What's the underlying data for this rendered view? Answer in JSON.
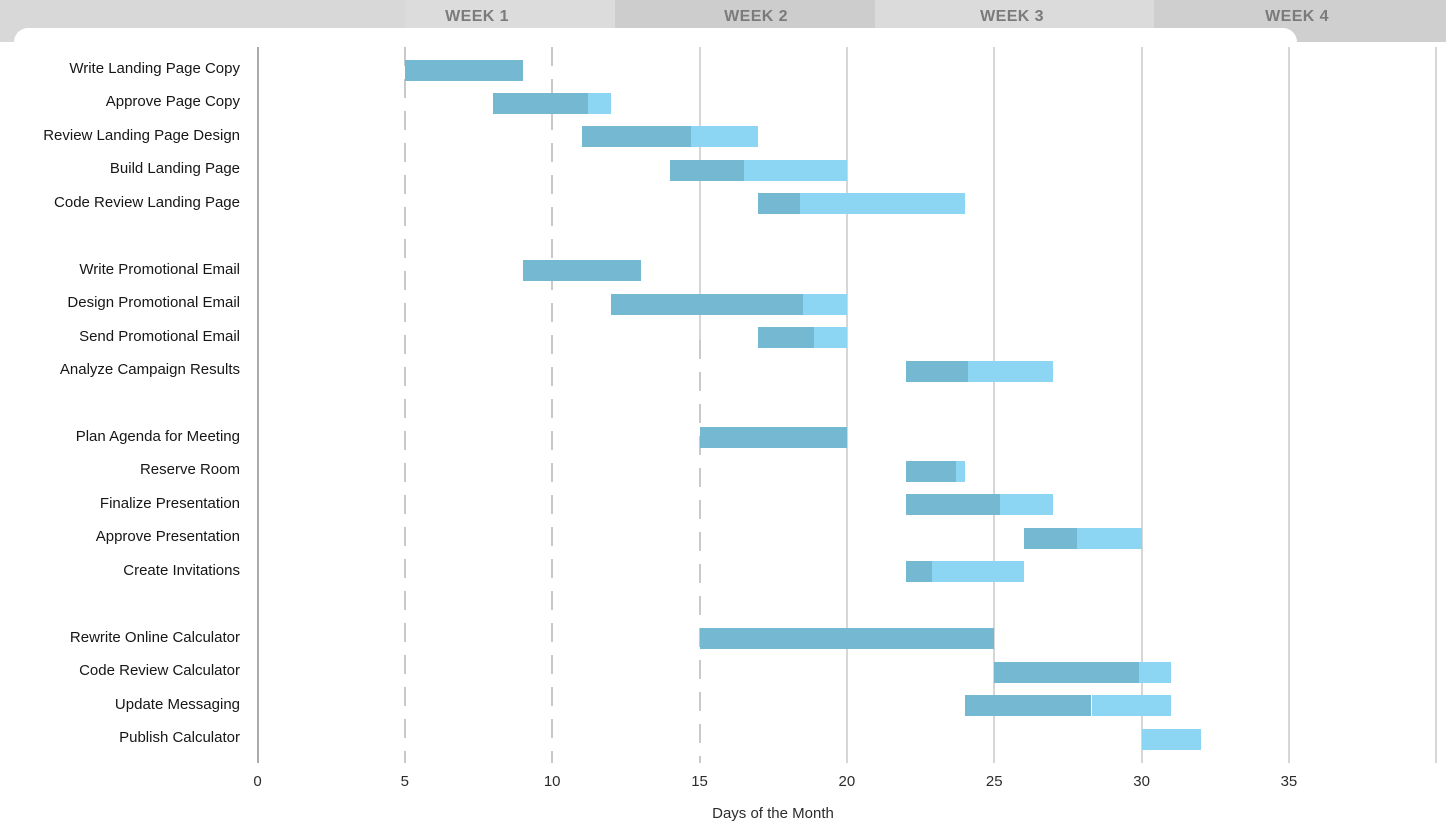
{
  "header": {
    "week_labels": [
      "WEEK 1",
      "WEEK 2",
      "WEEK 3",
      "WEEK 4"
    ],
    "band_colors": [
      "#d8d8d8",
      "#dcdcdc",
      "#cdcdcd",
      "#dbdbdb",
      "#cfcfcf"
    ],
    "text_color": "#7b7b7b"
  },
  "chart_data": {
    "type": "gantt",
    "xlabel": "Days of the Month",
    "x_ticks": [
      0,
      5,
      10,
      15,
      20,
      25,
      30,
      35
    ],
    "xlim": [
      0,
      40
    ],
    "grid": "vertical, 5-day intervals, dashed on days 5-15, solid elsewhere",
    "legend": "none",
    "bar_colors": {
      "complete": "#74b8d1",
      "remaining": "#8dd6f3"
    },
    "groups": [
      {
        "name": "landing-page",
        "tasks": [
          {
            "label": "Write Landing Page Copy",
            "start": 5,
            "end": 9,
            "complete_until": 9
          },
          {
            "label": "Approve Page Copy",
            "start": 8,
            "end": 12,
            "complete_until": 11.2
          },
          {
            "label": "Review Landing Page Design",
            "start": 11,
            "end": 17,
            "complete_until": 14.7
          },
          {
            "label": "Build Landing Page",
            "start": 14,
            "end": 20,
            "complete_until": 16.5
          },
          {
            "label": "Code Review Landing Page",
            "start": 17,
            "end": 24,
            "complete_until": 18.4
          }
        ]
      },
      {
        "name": "promo-email",
        "tasks": [
          {
            "label": "Write Promotional Email",
            "start": 9,
            "end": 13,
            "complete_until": 13
          },
          {
            "label": "Design Promotional Email",
            "start": 12,
            "end": 20,
            "complete_until": 18.5
          },
          {
            "label": "Send Promotional Email",
            "start": 17,
            "end": 20,
            "complete_until": 18.9
          },
          {
            "label": "Analyze Campaign Results",
            "start": 22,
            "end": 27,
            "complete_until": 24.1
          }
        ]
      },
      {
        "name": "meeting",
        "tasks": [
          {
            "label": "Plan Agenda for Meeting",
            "start": 15,
            "end": 20,
            "complete_until": 20
          },
          {
            "label": "Reserve Room",
            "start": 22,
            "end": 24,
            "complete_until": 23.7
          },
          {
            "label": "Finalize Presentation",
            "start": 22,
            "end": 27,
            "complete_until": 25.2
          },
          {
            "label": "Approve Presentation",
            "start": 26,
            "end": 30,
            "complete_until": 27.8
          },
          {
            "label": "Create Invitations",
            "start": 22,
            "end": 26,
            "complete_until": 22.9
          }
        ]
      },
      {
        "name": "calculator",
        "tasks": [
          {
            "label": "Rewrite Online Calculator",
            "start": 15,
            "end": 25,
            "complete_until": 25
          },
          {
            "label": "Code Review Calculator",
            "start": 25,
            "end": 31,
            "complete_until": 29.9
          },
          {
            "label": "Update Messaging",
            "start": 24,
            "end": 31,
            "complete_until": 28.3
          },
          {
            "label": "Publish Calculator",
            "start": 30,
            "end": 32,
            "complete_until": 30
          }
        ]
      }
    ]
  }
}
